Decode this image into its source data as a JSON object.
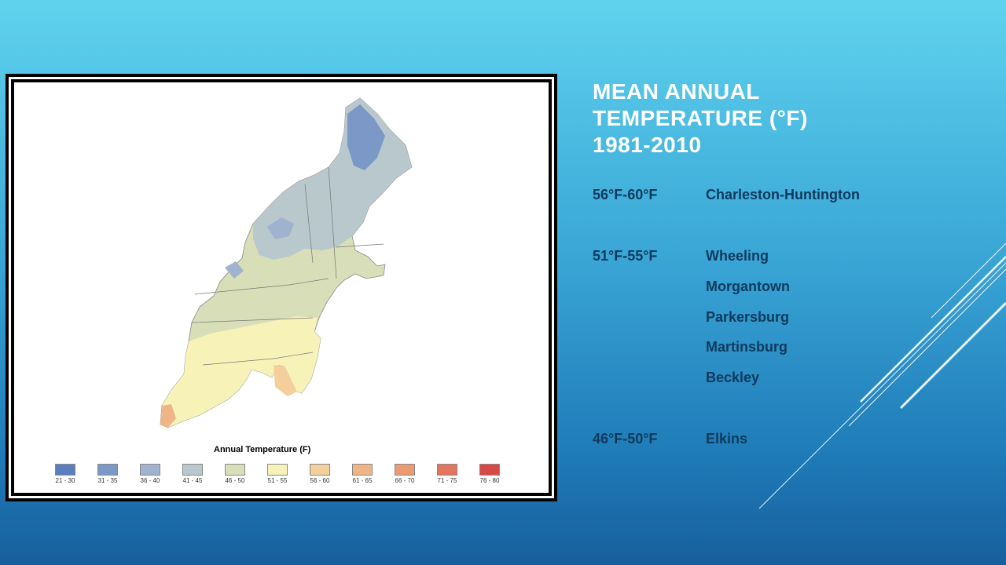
{
  "slide": {
    "title_lines": [
      "MEAN ANNUAL",
      "TEMPERATURE (°F)",
      "1981-2010"
    ]
  },
  "temperature_groups": [
    {
      "range": "56°F-60°F",
      "cities": [
        "Charleston-Huntington"
      ]
    },
    {
      "range": "51°F-55°F",
      "cities": [
        "Wheeling",
        "Morgantown",
        "Parkersburg",
        "Martinsburg",
        "Beckley"
      ]
    },
    {
      "range": "46°F-50°F",
      "cities": [
        "Elkins"
      ]
    }
  ],
  "map": {
    "legend_title": "Annual Temperature (F)",
    "legend": [
      {
        "label": "21 - 30",
        "color": "#5b7fbc"
      },
      {
        "label": "31 - 35",
        "color": "#7c98c6"
      },
      {
        "label": "36 - 40",
        "color": "#9fb3cf"
      },
      {
        "label": "41 - 45",
        "color": "#b9c8cc"
      },
      {
        "label": "46 - 50",
        "color": "#d8dfb8"
      },
      {
        "label": "51 - 55",
        "color": "#f7f3b8"
      },
      {
        "label": "56 - 60",
        "color": "#f4cf9b"
      },
      {
        "label": "61 - 65",
        "color": "#f0b587"
      },
      {
        "label": "66 - 70",
        "color": "#eb9a72"
      },
      {
        "label": "71 - 75",
        "color": "#e2755e"
      },
      {
        "label": "76 - 80",
        "color": "#d54a45"
      }
    ]
  }
}
